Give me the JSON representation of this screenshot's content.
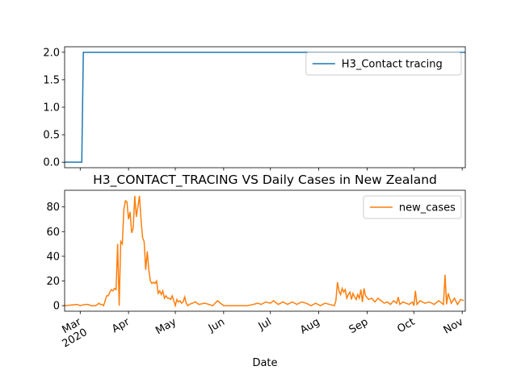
{
  "chart_data": [
    {
      "type": "line",
      "x": [
        "2020-02-20",
        "2020-03-02",
        "2020-03-03",
        "2020-11-03"
      ],
      "series": [
        {
          "name": "H3_Contact tracing",
          "color": "#1f77b4",
          "values": [
            0,
            0,
            2,
            2
          ]
        }
      ],
      "xlim": [
        "2020-02-20",
        "2020-11-03"
      ],
      "xticks": [
        "2020-03-01",
        "2020-04-01",
        "2020-05-01",
        "2020-06-01",
        "2020-07-01",
        "2020-08-01",
        "2020-09-01",
        "2020-10-01",
        "2020-11-01"
      ],
      "ylim": [
        -0.1,
        2.1
      ],
      "yticks": [
        {
          "value": 0,
          "label": "0.0"
        },
        {
          "value": 0.5,
          "label": "0.5"
        },
        {
          "value": 1,
          "label": "1.0"
        },
        {
          "value": 1.5,
          "label": "1.5"
        },
        {
          "value": 2,
          "label": "2.0"
        }
      ],
      "legend": "upper right"
    },
    {
      "type": "line",
      "title": "H3_CONTACT_TRACING VS Daily Cases in New Zealand",
      "xlabel": "Date",
      "x": [
        "2020-02-20",
        "2020-02-28",
        "2020-03-01",
        "2020-03-04",
        "2020-03-06",
        "2020-03-08",
        "2020-03-11",
        "2020-03-13",
        "2020-03-14",
        "2020-03-15",
        "2020-03-16",
        "2020-03-17",
        "2020-03-18",
        "2020-03-19",
        "2020-03-20",
        "2020-03-21",
        "2020-03-22",
        "2020-03-23",
        "2020-03-24",
        "2020-03-25",
        "2020-03-26",
        "2020-03-27",
        "2020-03-28",
        "2020-03-29",
        "2020-03-30",
        "2020-03-31",
        "2020-04-01",
        "2020-04-02",
        "2020-04-03",
        "2020-04-04",
        "2020-04-05",
        "2020-04-06",
        "2020-04-07",
        "2020-04-08",
        "2020-04-09",
        "2020-04-10",
        "2020-04-11",
        "2020-04-12",
        "2020-04-13",
        "2020-04-14",
        "2020-04-15",
        "2020-04-16",
        "2020-04-17",
        "2020-04-18",
        "2020-04-19",
        "2020-04-20",
        "2020-04-21",
        "2020-04-22",
        "2020-04-23",
        "2020-04-24",
        "2020-04-25",
        "2020-04-26",
        "2020-04-27",
        "2020-04-28",
        "2020-04-29",
        "2020-04-30",
        "2020-05-01",
        "2020-05-02",
        "2020-05-03",
        "2020-05-04",
        "2020-05-05",
        "2020-05-06",
        "2020-05-07",
        "2020-05-08",
        "2020-05-09",
        "2020-05-10",
        "2020-05-14",
        "2020-05-16",
        "2020-05-20",
        "2020-05-25",
        "2020-05-28",
        "2020-06-01",
        "2020-06-10",
        "2020-06-16",
        "2020-06-20",
        "2020-06-23",
        "2020-06-25",
        "2020-06-28",
        "2020-07-01",
        "2020-07-03",
        "2020-07-06",
        "2020-07-09",
        "2020-07-12",
        "2020-07-15",
        "2020-07-18",
        "2020-07-21",
        "2020-07-24",
        "2020-07-27",
        "2020-07-30",
        "2020-08-02",
        "2020-08-05",
        "2020-08-08",
        "2020-08-11",
        "2020-08-12",
        "2020-08-13",
        "2020-08-14",
        "2020-08-15",
        "2020-08-16",
        "2020-08-17",
        "2020-08-18",
        "2020-08-19",
        "2020-08-20",
        "2020-08-21",
        "2020-08-22",
        "2020-08-23",
        "2020-08-24",
        "2020-08-25",
        "2020-08-26",
        "2020-08-27",
        "2020-08-28",
        "2020-08-29",
        "2020-08-30",
        "2020-08-31",
        "2020-09-02",
        "2020-09-04",
        "2020-09-06",
        "2020-09-08",
        "2020-09-10",
        "2020-09-12",
        "2020-09-14",
        "2020-09-16",
        "2020-09-18",
        "2020-09-20",
        "2020-09-21",
        "2020-09-22",
        "2020-09-24",
        "2020-09-26",
        "2020-09-28",
        "2020-09-30",
        "2020-10-01",
        "2020-10-02",
        "2020-10-03",
        "2020-10-05",
        "2020-10-08",
        "2020-10-11",
        "2020-10-14",
        "2020-10-17",
        "2020-10-19",
        "2020-10-20",
        "2020-10-21",
        "2020-10-22",
        "2020-10-23",
        "2020-10-25",
        "2020-10-27",
        "2020-10-29",
        "2020-10-31",
        "2020-11-02"
      ],
      "series": [
        {
          "name": "new_cases",
          "color": "#ff7f0e",
          "values": [
            0,
            1,
            0,
            1,
            1,
            0,
            0,
            2,
            1,
            1,
            0,
            4,
            8,
            8,
            11,
            13,
            12,
            14,
            13,
            50,
            0,
            52,
            50,
            78,
            85,
            84,
            70,
            76,
            59,
            63,
            89,
            72,
            80,
            89,
            70,
            55,
            52,
            29,
            44,
            29,
            20,
            18,
            19,
            18,
            20,
            10,
            12,
            9,
            12,
            6,
            8,
            6,
            6,
            5,
            8,
            4,
            0,
            5,
            3,
            4,
            2,
            3,
            7,
            2,
            0,
            1,
            3,
            1,
            2,
            0,
            4,
            0,
            0,
            0,
            1,
            2,
            1,
            3,
            2,
            4,
            1,
            3,
            1,
            3,
            1,
            3,
            2,
            0,
            2,
            0,
            2,
            1,
            0,
            4,
            19,
            12,
            9,
            14,
            11,
            13,
            6,
            9,
            11,
            5,
            10,
            7,
            5,
            9,
            6,
            13,
            3,
            14,
            8,
            5,
            6,
            3,
            6,
            4,
            2,
            3,
            1,
            4,
            2,
            7,
            1,
            3,
            2,
            1,
            3,
            0,
            12,
            1,
            4,
            2,
            3,
            1,
            4,
            2,
            1,
            25,
            1,
            10,
            2,
            6,
            1,
            5,
            4
          ]
        }
      ],
      "xlim": [
        "2020-02-20",
        "2020-11-03"
      ],
      "xticks": [
        {
          "value": "2020-03-01",
          "label": "Mar\n2020"
        },
        {
          "value": "2020-04-01",
          "label": "Apr"
        },
        {
          "value": "2020-05-01",
          "label": "May"
        },
        {
          "value": "2020-06-01",
          "label": "Jun"
        },
        {
          "value": "2020-07-01",
          "label": "Jul"
        },
        {
          "value": "2020-08-01",
          "label": "Aug"
        },
        {
          "value": "2020-09-01",
          "label": "Sep"
        },
        {
          "value": "2020-10-01",
          "label": "Oct"
        },
        {
          "value": "2020-11-01",
          "label": "Nov"
        }
      ],
      "ylim": [
        -4.5,
        93.5
      ],
      "yticks": [
        0,
        20,
        40,
        60,
        80
      ],
      "legend": "upper right"
    }
  ]
}
